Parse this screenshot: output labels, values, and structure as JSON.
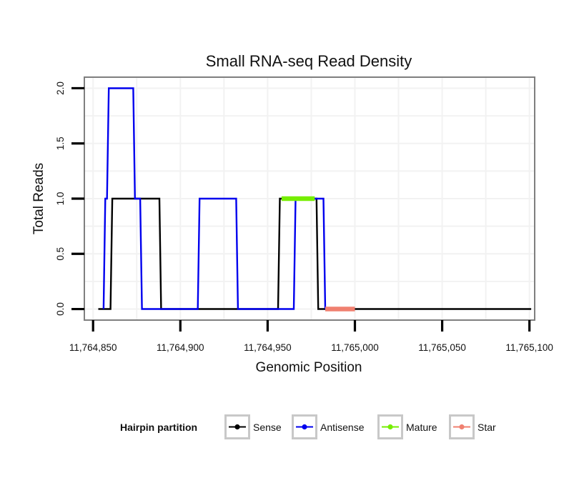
{
  "chart_data": {
    "type": "line",
    "title": "Small RNA-seq Read Density",
    "xlabel": "Genomic Position",
    "ylabel": "Total Reads",
    "xlim": [
      11764845,
      11765103
    ],
    "ylim": [
      -0.1,
      2.1
    ],
    "x_ticks": [
      {
        "value": 11764850,
        "label": "11,764,850"
      },
      {
        "value": 11764900,
        "label": "11,764,900"
      },
      {
        "value": 11764950,
        "label": "11,764,950"
      },
      {
        "value": 11765000,
        "label": "11,765,000"
      },
      {
        "value": 11765050,
        "label": "11,765,050"
      },
      {
        "value": 11765100,
        "label": "11,765,100"
      }
    ],
    "y_ticks": [
      {
        "value": 0.0,
        "label": "0.0"
      },
      {
        "value": 0.5,
        "label": "0.5"
      },
      {
        "value": 1.0,
        "label": "1.0"
      },
      {
        "value": 1.5,
        "label": "1.5"
      },
      {
        "value": 2.0,
        "label": "2.0"
      }
    ],
    "grid": true,
    "legend_position": "bottom",
    "legend_title": "Hairpin partition",
    "series": [
      {
        "name": "Sense",
        "color": "#000000",
        "x": [
          11764853,
          11764860,
          11764861,
          11764888,
          11764889,
          11764956,
          11764957,
          11764978,
          11764979,
          11765101
        ],
        "y": [
          0,
          0,
          1,
          1,
          0,
          0,
          1,
          1,
          0,
          0
        ]
      },
      {
        "name": "Antisense",
        "color": "#0000ee",
        "x": [
          11764856,
          11764857,
          11764858,
          11764859,
          11764873,
          11764874,
          11764877,
          11764878,
          11764910,
          11764911,
          11764932,
          11764933,
          11764965,
          11764966,
          11764982,
          11764983
        ],
        "y": [
          0,
          1,
          1,
          2,
          2,
          1,
          1,
          0,
          0,
          1,
          1,
          0,
          0,
          1,
          1,
          0
        ]
      },
      {
        "name": "Mature",
        "color": "#76ee00",
        "x": [
          11764958,
          11764977
        ],
        "y": [
          1,
          1
        ]
      },
      {
        "name": "Star",
        "color": "#f08070",
        "x": [
          11764983,
          11765000
        ],
        "y": [
          0,
          0
        ]
      }
    ]
  }
}
